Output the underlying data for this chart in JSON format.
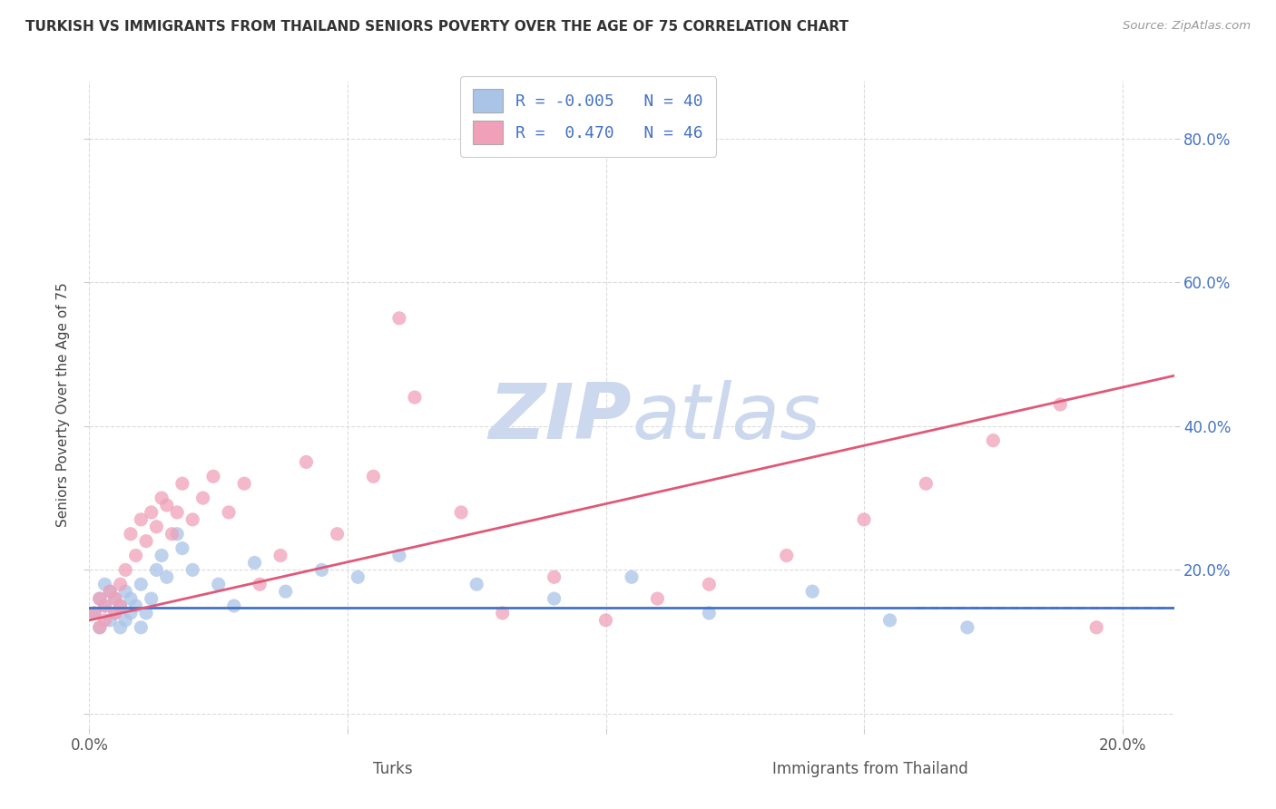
{
  "title": "TURKISH VS IMMIGRANTS FROM THAILAND SENIORS POVERTY OVER THE AGE OF 75 CORRELATION CHART",
  "source": "Source: ZipAtlas.com",
  "ylabel": "Seniors Poverty Over the Age of 75",
  "xlabel_turks": "Turks",
  "xlabel_thai": "Immigrants from Thailand",
  "turks_R": -0.005,
  "turks_N": 40,
  "thai_R": 0.47,
  "thai_N": 46,
  "xlim": [
    0.0,
    0.21
  ],
  "ylim": [
    -0.02,
    0.88
  ],
  "turks_color": "#aac4e8",
  "thai_color": "#f0a0b8",
  "turks_line_color": "#4472c4",
  "thai_line_color": "#e05878",
  "watermark_color": "#ccd8ee",
  "grid_color": "#cccccc",
  "turks_line_y0": 0.148,
  "turks_line_y1": 0.148,
  "thai_line_y0": 0.13,
  "thai_line_y1": 0.47,
  "turks_x": [
    0.001,
    0.002,
    0.002,
    0.003,
    0.003,
    0.004,
    0.004,
    0.005,
    0.005,
    0.006,
    0.006,
    0.007,
    0.007,
    0.008,
    0.008,
    0.009,
    0.01,
    0.01,
    0.011,
    0.012,
    0.013,
    0.014,
    0.015,
    0.017,
    0.018,
    0.02,
    0.025,
    0.028,
    0.032,
    0.038,
    0.045,
    0.052,
    0.06,
    0.075,
    0.09,
    0.105,
    0.12,
    0.14,
    0.155,
    0.17
  ],
  "turks_y": [
    0.14,
    0.16,
    0.12,
    0.15,
    0.18,
    0.13,
    0.17,
    0.14,
    0.16,
    0.15,
    0.12,
    0.17,
    0.13,
    0.16,
    0.14,
    0.15,
    0.12,
    0.18,
    0.14,
    0.16,
    0.2,
    0.22,
    0.19,
    0.25,
    0.23,
    0.2,
    0.18,
    0.15,
    0.21,
    0.17,
    0.2,
    0.19,
    0.22,
    0.18,
    0.16,
    0.19,
    0.14,
    0.17,
    0.13,
    0.12
  ],
  "thai_x": [
    0.001,
    0.002,
    0.002,
    0.003,
    0.003,
    0.004,
    0.005,
    0.005,
    0.006,
    0.006,
    0.007,
    0.008,
    0.009,
    0.01,
    0.011,
    0.012,
    0.013,
    0.014,
    0.015,
    0.016,
    0.017,
    0.018,
    0.02,
    0.022,
    0.024,
    0.027,
    0.03,
    0.033,
    0.037,
    0.042,
    0.048,
    0.055,
    0.063,
    0.072,
    0.06,
    0.08,
    0.09,
    0.1,
    0.11,
    0.12,
    0.135,
    0.15,
    0.162,
    0.175,
    0.188,
    0.195
  ],
  "thai_y": [
    0.14,
    0.16,
    0.12,
    0.15,
    0.13,
    0.17,
    0.14,
    0.16,
    0.18,
    0.15,
    0.2,
    0.25,
    0.22,
    0.27,
    0.24,
    0.28,
    0.26,
    0.3,
    0.29,
    0.25,
    0.28,
    0.32,
    0.27,
    0.3,
    0.33,
    0.28,
    0.32,
    0.18,
    0.22,
    0.35,
    0.25,
    0.33,
    0.44,
    0.28,
    0.55,
    0.14,
    0.19,
    0.13,
    0.16,
    0.18,
    0.22,
    0.27,
    0.32,
    0.38,
    0.43,
    0.12
  ]
}
